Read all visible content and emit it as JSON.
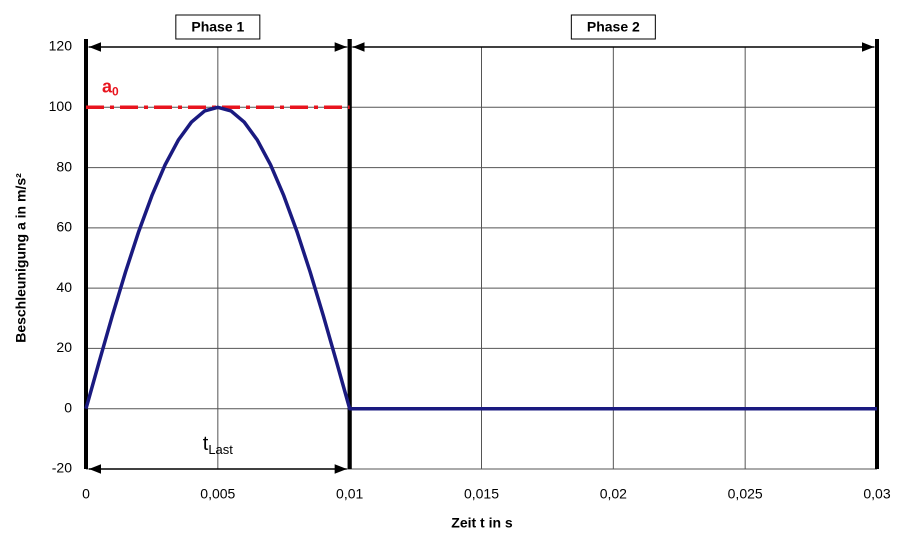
{
  "chart_data": {
    "type": "line",
    "x_label": "Zeit t in s",
    "y_label": "Beschleunigung a in m/s²",
    "xlim": [
      0,
      0.03
    ],
    "ylim": [
      -20,
      120
    ],
    "xticks": [
      0,
      {
        "value": 0.005,
        "label": "0,005"
      },
      {
        "value": 0.01,
        "label": "0,01"
      },
      {
        "value": 0.015,
        "label": "0,015"
      },
      {
        "value": 0.02,
        "label": "0,02"
      },
      {
        "value": 0.025,
        "label": "0,025"
      },
      {
        "value": 0.03,
        "label": "0,03"
      }
    ],
    "yticks": [
      -20,
      0,
      20,
      40,
      60,
      80,
      100,
      120
    ],
    "grid": true,
    "x": [
      0,
      0.0005,
      0.001,
      0.0015,
      0.002,
      0.0025,
      0.003,
      0.0035,
      0.004,
      0.0045,
      0.005,
      0.0055,
      0.006,
      0.0065,
      0.007,
      0.0075,
      0.008,
      0.0085,
      0.009,
      0.0095,
      0.01,
      0.015,
      0.02,
      0.025,
      0.03
    ],
    "series": [
      {
        "color": "#1a1a80",
        "values": [
          0,
          15.6,
          30.9,
          45.4,
          58.8,
          70.7,
          80.9,
          89.1,
          95.1,
          98.8,
          100,
          98.8,
          95.1,
          89.1,
          80.9,
          70.7,
          58.8,
          45.4,
          30.9,
          15.6,
          0,
          0,
          0,
          0,
          0
        ]
      }
    ],
    "reference_line": {
      "value": 100,
      "color": "#e8141e",
      "text": "a",
      "sub": "0"
    },
    "phases": [
      {
        "label": "Phase 1",
        "start": 0,
        "end": 0.01
      },
      {
        "label": "Phase 2",
        "start": 0.01,
        "end": 0.03
      }
    ],
    "duration": {
      "text": "t",
      "sub": "Last",
      "start": 0,
      "end": 0.01
    }
  }
}
